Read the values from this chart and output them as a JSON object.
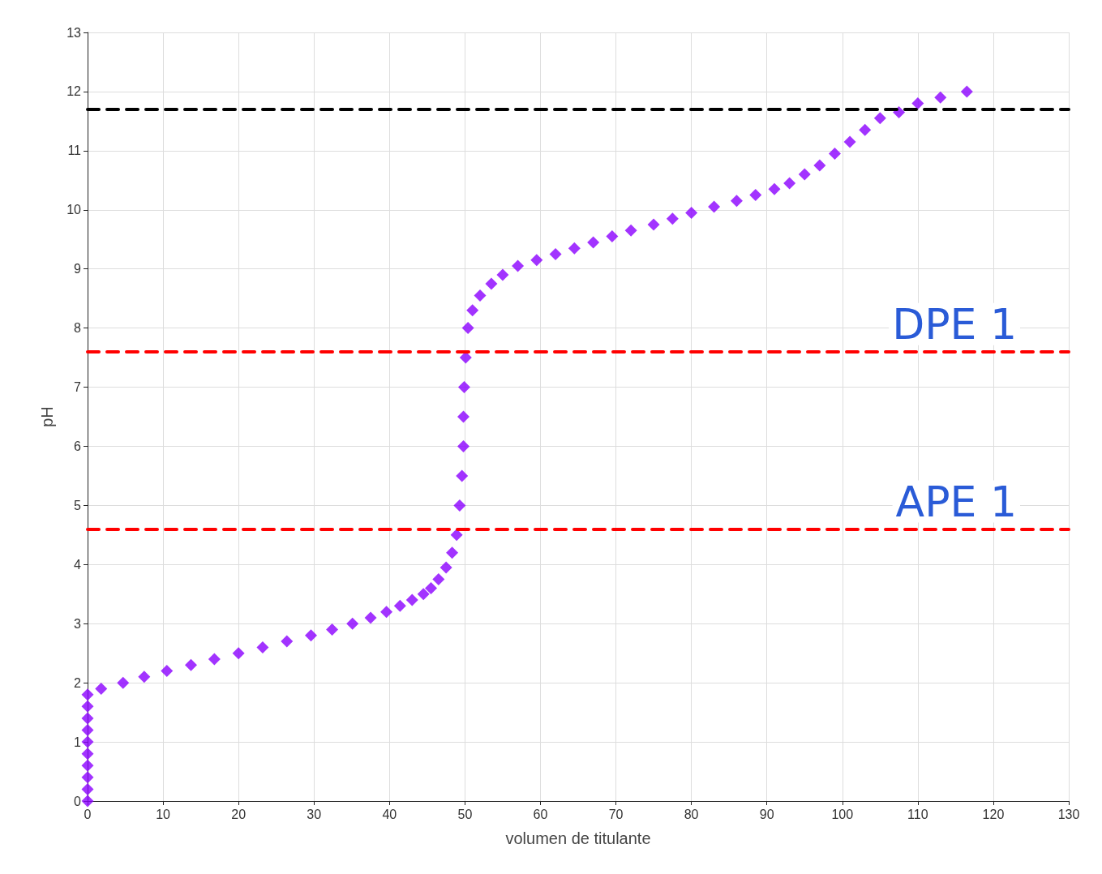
{
  "chart_data": {
    "type": "scatter",
    "xlabel": "volumen de titulante",
    "ylabel": "pH",
    "xlim": [
      0,
      130
    ],
    "xticks": [
      0,
      10,
      20,
      30,
      40,
      50,
      60,
      70,
      80,
      90,
      100,
      110,
      120,
      130
    ],
    "ylim": [
      0,
      13
    ],
    "yticks": [
      0,
      1,
      2,
      3,
      4,
      5,
      6,
      7,
      8,
      9,
      10,
      11,
      12,
      13
    ],
    "grid": true,
    "marker": "diamond",
    "series": [
      {
        "color": "#8b00ff",
        "x": [
          0,
          0,
          0,
          0,
          0,
          0,
          0,
          0,
          0,
          0,
          1.8,
          4.7,
          7.5,
          10.5,
          13.7,
          16.8,
          20,
          23.2,
          26.4,
          29.6,
          32.4,
          35.1,
          37.5,
          39.6,
          41.4,
          43,
          44.5,
          45.5,
          46.5,
          47.5,
          48.3,
          48.9,
          49.3,
          49.6,
          49.8,
          49.8,
          49.9,
          50.1,
          50.4,
          51,
          52,
          53.5,
          55,
          57,
          59.5,
          62,
          64.5,
          67,
          69.5,
          72,
          75,
          77.5,
          80,
          83,
          86,
          88.5,
          91,
          93,
          95,
          97,
          99,
          101,
          103,
          105,
          107.5,
          110,
          113,
          116.5
        ],
        "values": [
          0,
          0.2,
          0.4,
          0.6,
          0.8,
          1,
          1.2,
          1.4,
          1.6,
          1.8,
          1.9,
          2,
          2.1,
          2.2,
          2.3,
          2.4,
          2.5,
          2.6,
          2.7,
          2.8,
          2.9,
          3,
          3.1,
          3.2,
          3.3,
          3.4,
          3.5,
          3.6,
          3.75,
          3.95,
          4.2,
          4.5,
          5,
          5.5,
          6,
          6.5,
          7,
          7.5,
          8,
          8.3,
          8.55,
          8.75,
          8.9,
          9.05,
          9.15,
          9.25,
          9.35,
          9.45,
          9.55,
          9.65,
          9.75,
          9.85,
          9.95,
          10.05,
          10.15,
          10.25,
          10.35,
          10.45,
          10.6,
          10.75,
          10.95,
          11.15,
          11.35,
          11.55,
          11.65,
          11.8,
          11.9,
          12
        ]
      }
    ],
    "ref_lines": [
      {
        "axis": "y",
        "value": 11.7,
        "color": "#000000",
        "line_style": "dashed"
      },
      {
        "axis": "y",
        "value": 7.6,
        "label": "DPE 1",
        "color": "#ff0000",
        "line_style": "dashed"
      },
      {
        "axis": "y",
        "value": 4.6,
        "label": "APE 1",
        "color": "#ff0000",
        "line_style": "dashed"
      }
    ]
  }
}
